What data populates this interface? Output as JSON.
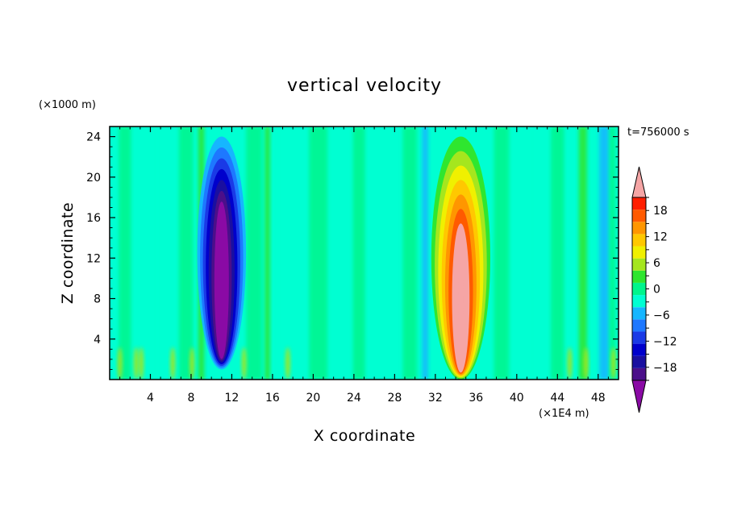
{
  "chart_data": {
    "type": "heatmap",
    "title": "vertical velocity",
    "xlabel": "X coordinate",
    "ylabel": "Z coordinate",
    "x_unit": "(×1E4 m)",
    "y_unit": "(×1000 m)",
    "time_label": "t=756000 s",
    "xlim": [
      0,
      50
    ],
    "ylim": [
      0,
      25
    ],
    "x_ticks": [
      4,
      8,
      12,
      16,
      20,
      24,
      28,
      32,
      36,
      40,
      44,
      48
    ],
    "y_ticks": [
      4,
      8,
      12,
      16,
      20,
      24
    ],
    "x_tick_labels": [
      "4",
      "8",
      "12",
      "16",
      "20",
      "24",
      "28",
      "32",
      "36",
      "40",
      "44",
      "48"
    ],
    "y_tick_labels": [
      "4",
      "8",
      "12",
      "16",
      "20",
      "24"
    ],
    "colorbar": {
      "levels": [
        -21,
        -18,
        -15,
        -12,
        -9,
        -6,
        -3,
        0,
        3,
        6,
        9,
        12,
        15,
        18,
        21
      ],
      "colors": [
        "#4b0f8a",
        "#1a0fa0",
        "#0000cc",
        "#1a3ae6",
        "#1e78ff",
        "#16b6ff",
        "#00ffd2",
        "#00f58c",
        "#2fe62f",
        "#a5e61e",
        "#f0f000",
        "#ffc800",
        "#ff9600",
        "#ff5a00",
        "#ff1e00"
      ],
      "under_color": "#8a0aa5",
      "over_color": "#f5a5a5",
      "tick_values": [
        18,
        12,
        6,
        0,
        -6,
        -12,
        -18
      ],
      "tick_labels": [
        "18",
        "12",
        "6",
        "0",
        "−6",
        "−12",
        "−18"
      ]
    },
    "features": [
      {
        "kind": "downdraft",
        "x_center": 11,
        "z_bottom": 1,
        "z_top": 24,
        "min_value": -21
      },
      {
        "kind": "updraft",
        "x_center": 34.5,
        "z_bottom": 0,
        "z_top": 24,
        "max_value": 21
      }
    ]
  }
}
